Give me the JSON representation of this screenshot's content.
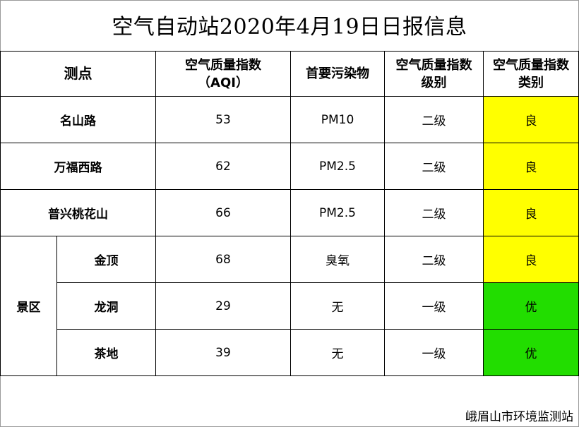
{
  "title": "空气自动站2020年4月19日日报信息",
  "headers": {
    "station": "测点",
    "aqi_line1": "空气质量指数",
    "aqi_line2": "（AQI）",
    "pollutant": "首要污染物",
    "level_line1": "空气质量指数",
    "level_line2": "级别",
    "category_line1": "空气质量指数",
    "category_line2": "类别"
  },
  "scenic_area_label": "景区",
  "rows": [
    {
      "station": "名山路",
      "aqi": "53",
      "pollutant": "PM10",
      "level": "二级",
      "category": "良",
      "color": "#ffff00"
    },
    {
      "station": "万福西路",
      "aqi": "62",
      "pollutant": "PM2.5",
      "level": "二级",
      "category": "良",
      "color": "#ffff00"
    },
    {
      "station": "普兴桃花山",
      "aqi": "66",
      "pollutant": "PM2.5",
      "level": "二级",
      "category": "良",
      "color": "#ffff00"
    },
    {
      "station": "金顶",
      "aqi": "68",
      "pollutant": "臭氧",
      "level": "二级",
      "category": "良",
      "color": "#ffff00"
    },
    {
      "station": "龙洞",
      "aqi": "29",
      "pollutant": "无",
      "level": "一级",
      "category": "优",
      "color": "#22dd00"
    },
    {
      "station": "茶地",
      "aqi": "39",
      "pollutant": "无",
      "level": "一级",
      "category": "优",
      "color": "#22dd00"
    }
  ],
  "footer": "峨眉山市环境监测站"
}
